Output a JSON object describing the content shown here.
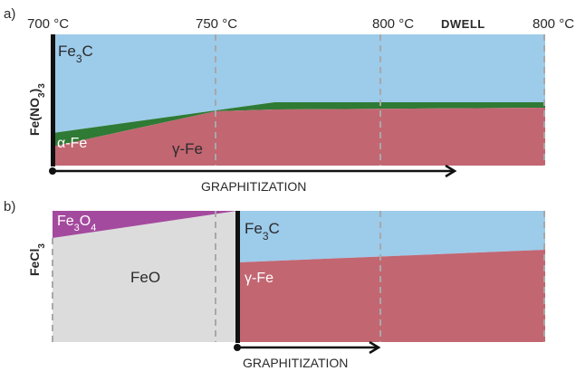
{
  "panel_a": {
    "letter": "a)",
    "precursor_label": "Fe(NO",
    "precursor_sub": "3",
    "precursor_close": ")",
    "precursor_sub2": "3",
    "temps": [
      "700 °C",
      "750 °C",
      "800 °C",
      "800 °C"
    ],
    "dwell_label": "DWELL",
    "phases": {
      "fe3c": {
        "main": "Fe",
        "sub": "3",
        "tail": "C"
      },
      "alpha": "α-Fe",
      "gamma": "γ-Fe"
    },
    "arrow_label": "GRAPHITIZATION"
  },
  "panel_b": {
    "letter": "b)",
    "precursor_label": "FeCl",
    "precursor_sub": "3",
    "phases": {
      "fe3o4": {
        "main": "Fe",
        "sub1": "3",
        "mid": "O",
        "sub2": "4"
      },
      "feo": "FeO",
      "fe3c": {
        "main": "Fe",
        "sub": "3",
        "tail": "C"
      },
      "gamma": "γ-Fe"
    },
    "arrow_label": "GRAPHITIZATION"
  },
  "colors": {
    "fe3c": "#9dcbea",
    "alpha_fe": "#2f7a34",
    "gamma_fe": "#c26672",
    "feo": "#dcdcdc",
    "fe3o4": "#a44a9e"
  }
}
